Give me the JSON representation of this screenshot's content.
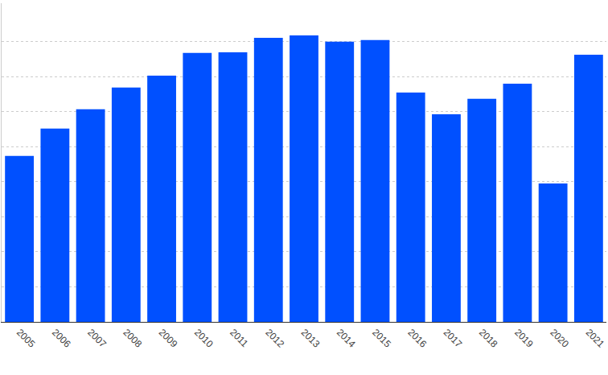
{
  "chart_data": {
    "type": "bar",
    "categories": [
      "2005",
      "2006",
      "2007",
      "2008",
      "2009",
      "2010",
      "2011",
      "2012",
      "2013",
      "2014",
      "2015",
      "2016",
      "2017",
      "2018",
      "2019",
      "2020",
      "2021"
    ],
    "values": [
      4.74,
      5.52,
      6.07,
      6.69,
      7.03,
      7.68,
      7.7,
      8.11,
      8.18,
      8.0,
      8.05,
      6.55,
      5.93,
      6.37,
      6.8,
      3.95,
      7.63
    ],
    "color": "#0050ff",
    "ylim": [
      0,
      9.1
    ],
    "yticks": [
      0,
      1,
      2,
      3,
      4,
      5,
      6,
      7,
      8
    ],
    "grid": true,
    "tick_labels": "x"
  }
}
